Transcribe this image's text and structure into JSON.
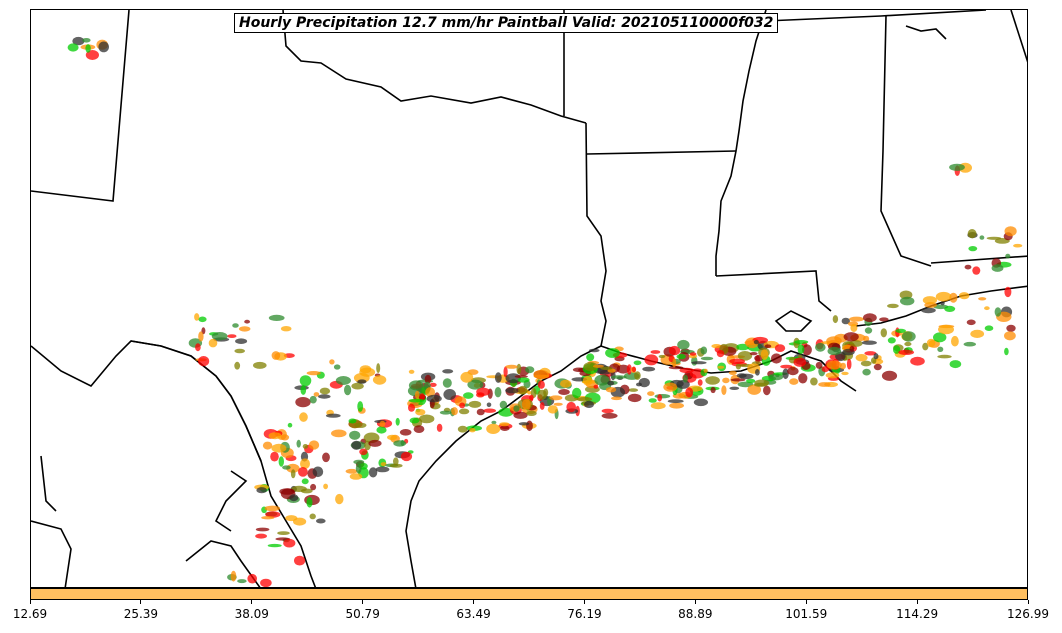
{
  "title": "Hourly Precipitation 12.7 mm/hr Paintball Valid: 202105110000f032",
  "colorbar": {
    "color": "#ffbf60",
    "tick_labels": [
      "12.69",
      "25.39",
      "38.09",
      "50.79",
      "63.49",
      "76.19",
      "88.89",
      "101.59",
      "114.29",
      "126.99"
    ]
  },
  "map": {
    "background": "#ffffff",
    "border_color": "#000000",
    "member_colors": [
      "#ff0000",
      "#ff8c00",
      "#808000",
      "#00cc00",
      "#8b0000",
      "#ffa500",
      "#2f2f2f",
      "#2e8b2e"
    ]
  }
}
